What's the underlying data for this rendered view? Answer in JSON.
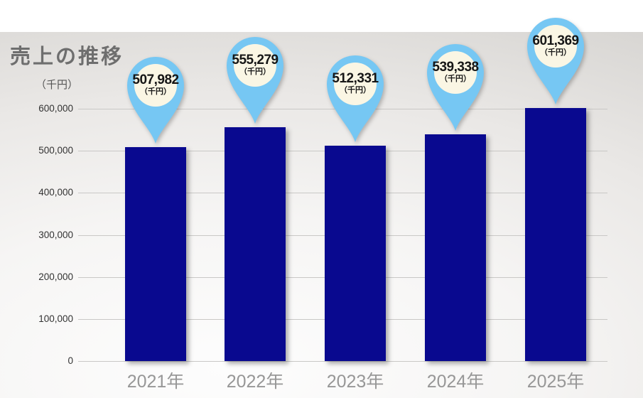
{
  "title": "売上の推移",
  "unit_label": "（千円）",
  "pin_unit": "（千円）",
  "chart_data": {
    "type": "bar",
    "title": "売上の推移",
    "ylabel": "（千円）",
    "categories": [
      "2021年",
      "2022年",
      "2023年",
      "2024年",
      "2025年"
    ],
    "values": [
      507982,
      555279,
      512331,
      539338,
      601369
    ],
    "value_labels": [
      "507,982",
      "555,279",
      "512,331",
      "539,338",
      "601,369"
    ],
    "value_unit": "（千円）",
    "ylim": [
      0,
      600000
    ],
    "ytick_interval": 100000,
    "ytick_labels": [
      "0",
      "100,000",
      "200,000",
      "300,000",
      "400,000",
      "500,000",
      "600,000"
    ],
    "grid": true,
    "legend": "none",
    "bar_color": "#09098f",
    "pin_ring_color": "#76c7f3",
    "pin_fill_color": "#faf6e4",
    "title_color": "#6e6e6e",
    "xtick_color": "#979797",
    "gridline_color": "#c9c8c6"
  }
}
